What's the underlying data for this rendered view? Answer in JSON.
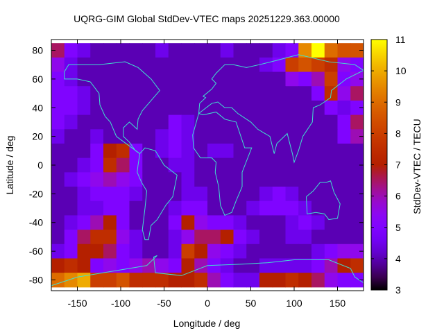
{
  "chart_data": {
    "type": "heatmap",
    "title": "UQRG-GIM Global StdDev-VTEC maps 20251229.363.00000",
    "xlabel": "Longitude / deg",
    "ylabel": "Latitude / deg",
    "colorbar_label": "StdDev-VTEC / TECU",
    "xlim": [
      -180,
      180
    ],
    "ylim": [
      -87.5,
      87.5
    ],
    "clim": [
      3,
      11
    ],
    "palette": "black-purple-red-orange-yellow",
    "coastline_color": "#40e0d0",
    "x_ticks": [
      -150,
      -100,
      -50,
      0,
      50,
      100,
      150
    ],
    "x_tick_labels": [
      "-150",
      "-100",
      "-50",
      "0",
      "50",
      "100",
      "150"
    ],
    "y_ticks": [
      80,
      60,
      40,
      20,
      0,
      -20,
      -40,
      -60,
      -80
    ],
    "y_tick_labels": [
      "80",
      "60",
      "40",
      "20",
      "0",
      "-20",
      "-40",
      "-60",
      "-80"
    ],
    "c_ticks": [
      3,
      4,
      5,
      6,
      7,
      8,
      9,
      10,
      11
    ],
    "c_tick_labels": [
      "3",
      "4",
      "5",
      "6",
      "7",
      "8",
      "9",
      "10",
      "11"
    ],
    "grid_note_lon_centers": [
      -172.5,
      -157.5,
      -142.5,
      -127.5,
      -112.5,
      -97.5,
      -82.5,
      -67.5,
      -52.5,
      -37.5,
      -22.5,
      -7.5,
      7.5,
      22.5,
      37.5,
      52.5,
      67.5,
      82.5,
      97.5,
      112.5,
      127.5,
      142.5,
      157.5,
      172.5
    ],
    "lat_centers": [
      80,
      70,
      60,
      50,
      40,
      30,
      20,
      10,
      0,
      -10,
      -20,
      -30,
      -40,
      -50,
      -60,
      -70,
      -80
    ],
    "values": [
      [
        6.5,
        5,
        4.5,
        4,
        4,
        4,
        4,
        4,
        4.5,
        4,
        4,
        4,
        4,
        4.5,
        4,
        4,
        4,
        4.5,
        5,
        9.5,
        11,
        9,
        8.5,
        8.5
      ],
      [
        5.5,
        4.5,
        4,
        4,
        4,
        4,
        4,
        4,
        4,
        4,
        4,
        4,
        4,
        4,
        4,
        4,
        4.5,
        5,
        8,
        8.5,
        8,
        7.5,
        5.5,
        5
      ],
      [
        5,
        4.5,
        4,
        4,
        4,
        4,
        4,
        4,
        4,
        4,
        4,
        4,
        4,
        4,
        4,
        4,
        4,
        4,
        5.5,
        5,
        6,
        8,
        5,
        5.5
      ],
      [
        5,
        5,
        4.5,
        4,
        4,
        4,
        4,
        4,
        4,
        4,
        4,
        4,
        4,
        4,
        4,
        4,
        4,
        4,
        4,
        4,
        5,
        7.5,
        5.5,
        6.5
      ],
      [
        5,
        5,
        4.5,
        4,
        4,
        4,
        4,
        4,
        4,
        4,
        4,
        4,
        4,
        4,
        4,
        4,
        4,
        4,
        4,
        4,
        4,
        5,
        4.5,
        5
      ],
      [
        5,
        4.5,
        4,
        4,
        4,
        4,
        4,
        4,
        4,
        5,
        4.5,
        4,
        4,
        4,
        4,
        4,
        4,
        4,
        4,
        4,
        4,
        4,
        5,
        6.5
      ],
      [
        4.5,
        4,
        4,
        4.5,
        4,
        4,
        4,
        4,
        4.5,
        5,
        4.5,
        4,
        4,
        4,
        4,
        4,
        4,
        4,
        4,
        4,
        4,
        4,
        5,
        6
      ],
      [
        4,
        4,
        4,
        5,
        7,
        7.5,
        5,
        4,
        4.5,
        5,
        4.5,
        4,
        4.5,
        4.5,
        4,
        4,
        4,
        4,
        4,
        4,
        4,
        4,
        4,
        4
      ],
      [
        4,
        4,
        4.5,
        5,
        7.5,
        6.5,
        5,
        4,
        4,
        4.5,
        4.5,
        4,
        4,
        4,
        4,
        4,
        4,
        4,
        4,
        4,
        4,
        4,
        4,
        4
      ],
      [
        4,
        4.5,
        5,
        5.5,
        6,
        5.5,
        5,
        4,
        4,
        4,
        4.5,
        4,
        4,
        4,
        4,
        4,
        4,
        4,
        4,
        4,
        4,
        4,
        4,
        4
      ],
      [
        4,
        4,
        4.5,
        5,
        5,
        5,
        4.5,
        4,
        4,
        4,
        4.5,
        4.5,
        4,
        4,
        4,
        4,
        4.5,
        5,
        4.5,
        4,
        4,
        4,
        4,
        4
      ],
      [
        4,
        4,
        4.5,
        4.5,
        5,
        5,
        4,
        4,
        4,
        4.5,
        5,
        5,
        4,
        4,
        4,
        4.5,
        5,
        5,
        5,
        4.5,
        4,
        4,
        4,
        4
      ],
      [
        4,
        4.5,
        5,
        6,
        7,
        5,
        4,
        4,
        4,
        5,
        7,
        5.5,
        5,
        5,
        4.5,
        4,
        4,
        4,
        4.5,
        5,
        4.5,
        4,
        4,
        4
      ],
      [
        4,
        5,
        6.5,
        7.5,
        7.5,
        5.5,
        4.5,
        4,
        4,
        4.5,
        5.5,
        6.5,
        6.5,
        7,
        5,
        4.5,
        4,
        4,
        4.5,
        4.5,
        4,
        4,
        4,
        4
      ],
      [
        4.5,
        5,
        7,
        7,
        6.5,
        5,
        4.5,
        4,
        4,
        4.5,
        8,
        7,
        5.5,
        5,
        4.5,
        4,
        4,
        4,
        4,
        4,
        4.5,
        5,
        5.5,
        5.5
      ],
      [
        7,
        7.5,
        7,
        5,
        5.5,
        5,
        5.5,
        6,
        5.5,
        5,
        7,
        6,
        5,
        4.5,
        4,
        4,
        4.5,
        4.5,
        4.5,
        4.5,
        5,
        6,
        7,
        7.5
      ],
      [
        9,
        9.5,
        10,
        8,
        8,
        8.5,
        7.5,
        7.5,
        7.5,
        7,
        7,
        7.5,
        6,
        5,
        4.5,
        4.5,
        7,
        7,
        7.5,
        7,
        6.5,
        5.5,
        5,
        5
      ]
    ]
  }
}
